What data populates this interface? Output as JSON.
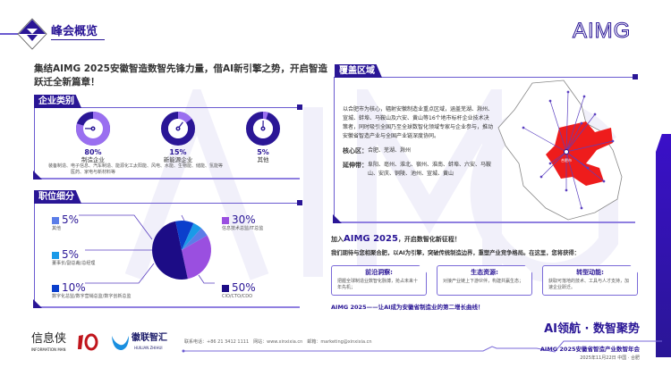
{
  "header": {
    "section_title": "峰会概览",
    "brand": "AIMG"
  },
  "headline": "集结AIMG 2025安徽智造数智先锋力量，借AI新引擎之势，开启智造跃迁全新篇章！",
  "enterprise": {
    "title": "企业类别",
    "items": [
      {
        "pct": "80%",
        "value": 80,
        "name": "制造企业",
        "desc": "装备制造、电子信息、汽车制造、能源化工、医药、家电与新材料等"
      },
      {
        "pct": "15%",
        "value": 15,
        "name": "新能源企业",
        "desc": "太阳能、风电、水能、生物能、储能、氢能等"
      },
      {
        "pct": "5%",
        "value": 5,
        "name": "其他",
        "desc": ""
      }
    ]
  },
  "positions": {
    "title": "职位细分",
    "items": [
      {
        "pct": "5%",
        "value": 5,
        "name": "其他",
        "color": "#5b7de8"
      },
      {
        "pct": "5%",
        "value": 5,
        "name": "董事长/副总裁/总经理",
        "color": "#1a9ae8"
      },
      {
        "pct": "10%",
        "value": 10,
        "name": "数字化总监/数字营销总监/数字创新总监",
        "color": "#0b3fcc"
      },
      {
        "pct": "30%",
        "value": 30,
        "name": "信息技术总监/IT总监",
        "color": "#9a4fe0"
      },
      {
        "pct": "50%",
        "value": 50,
        "name": "CIO/CTO/CDO",
        "color": "#1c0c86"
      }
    ]
  },
  "coverage": {
    "title": "覆盖区域",
    "desc": "以合肥市为核心，辐射安徽制造业重点区域，涵盖芜湖、滁州、宣城、蚌埠、马鞍山及六安、黄山等16个地市标杆企业技术决策者，同时吸引全国乃至全球数智化领域专家与企业参与，推动安徽省智造产业与全国产业链深度协同。",
    "core_label": "核心区：",
    "core": "合肥、芜湖、滁州",
    "ext_label": "延伸带：",
    "ext": "阜阳、亳州、淮北、宿州、淮南、蚌埠、六安、马鞍山、安庆、铜陵、池州、宣城、黄山",
    "map_center": "合肥市"
  },
  "join": {
    "prefix": "加入",
    "event": "AIMG 2025",
    "suffix": "，开启数智化新征程！",
    "line": "我们期待与您相聚合肥，以AI为引擎，突破传统制造边界，重塑产业竞争格局。在这里，您将获得：",
    "cards": [
      {
        "title": "前沿洞察:",
        "text": "把握全球制造业数智化脉搏，抢占未来十年先机；"
      },
      {
        "title": "生态资源:",
        "text": "对接产业链上下游伙伴，构建共赢生态；"
      },
      {
        "title": "转型动能:",
        "text": "获取可落地的技术、工具与人才支持，加速企业跃迁。"
      }
    ],
    "slogan": "AIMG 2025——让AI成为安徽省制造业的第二增长曲线！"
  },
  "footer": {
    "logo1": "信息侠",
    "logo1_en": "INFORMATION MAN",
    "logo2": "徽联智汇",
    "logo2_en": "HUILIAN ZHIHUI",
    "contact": "联系电话：+86 21 3412 1111　网站：www.xinxixia.cn　邮箱：marketing@xinxixia.cn",
    "tagline": "AI领航 · 数智聚势",
    "event": "AIMG 2025安徽省智造产业数智年会",
    "date": "2025年11月22日 中国 · 合肥"
  },
  "colors": {
    "primary": "#2a1696",
    "accent": "#6a5ad0",
    "map_red": "#ee1c1c"
  }
}
